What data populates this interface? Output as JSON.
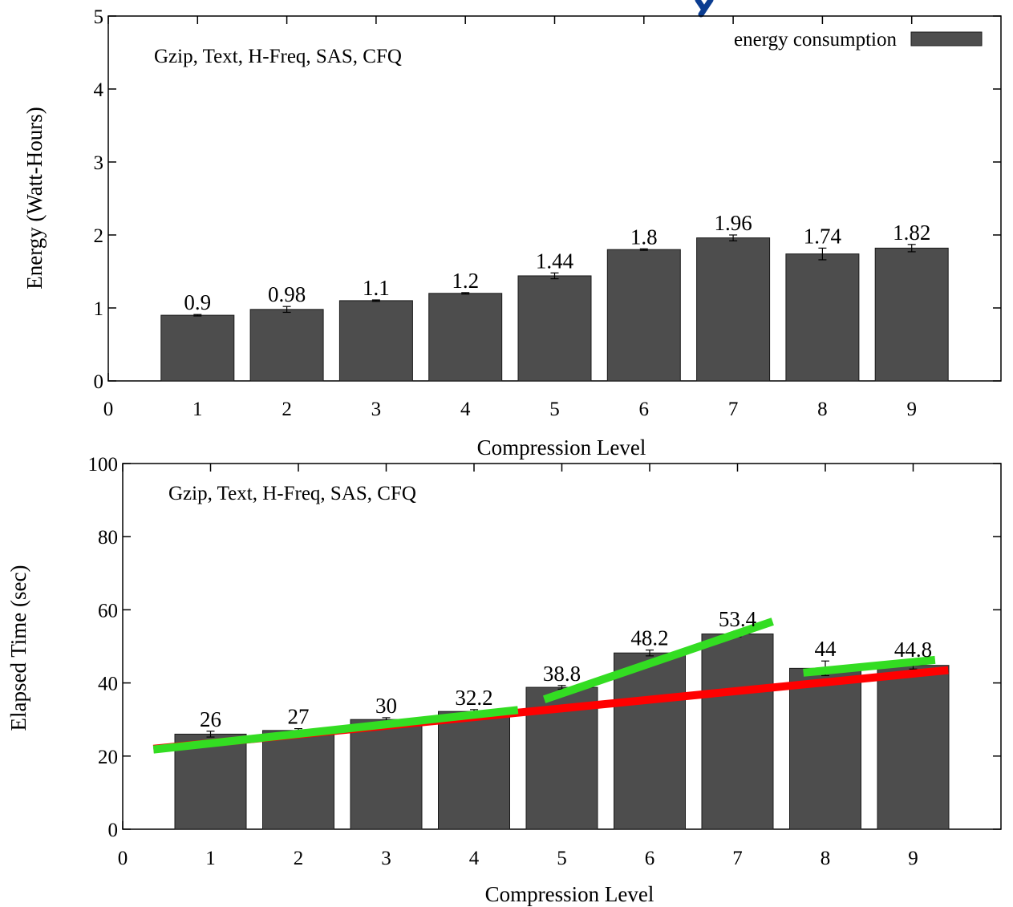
{
  "colors": {
    "bar": "#4d4d4d",
    "bar_edge": "#1a1a1a",
    "trend_red": "#ff0000",
    "trend_green": "#33dd22",
    "title_fragment": "#0b3d91"
  },
  "legend": {
    "label": "energy consumption"
  },
  "chart_data": [
    {
      "type": "bar",
      "annotation": "Gzip, Text, H-Freq, SAS, CFQ",
      "xlabel": "Compression Level",
      "ylabel": "Energy (Watt-Hours)",
      "xlim": [
        0,
        10
      ],
      "ylim": [
        0,
        5
      ],
      "xticks": [
        "0",
        "1",
        "2",
        "3",
        "4",
        "5",
        "6",
        "7",
        "8",
        "9"
      ],
      "yticks": [
        "0",
        "1",
        "2",
        "3",
        "4",
        "5"
      ],
      "categories": [
        "1",
        "2",
        "3",
        "4",
        "5",
        "6",
        "7",
        "8",
        "9"
      ],
      "series": [
        {
          "name": "energy consumption",
          "values": [
            0.9,
            0.98,
            1.1,
            1.2,
            1.44,
            1.8,
            1.96,
            1.74,
            1.82
          ],
          "labels": [
            "0.9",
            "0.98",
            "1.1",
            "1.2",
            "1.44",
            "1.8",
            "1.96",
            "1.74",
            "1.82"
          ],
          "error": [
            0.01,
            0.04,
            0.01,
            0.01,
            0.04,
            0.01,
            0.04,
            0.08,
            0.05
          ]
        }
      ],
      "legend_position": "top-right",
      "grid": false
    },
    {
      "type": "bar",
      "annotation": "Gzip, Text, H-Freq, SAS, CFQ",
      "xlabel": "Compression Level",
      "ylabel": "Elapsed Time (sec)",
      "xlim": [
        0,
        10
      ],
      "ylim": [
        0,
        100
      ],
      "xticks": [
        "0",
        "1",
        "2",
        "3",
        "4",
        "5",
        "6",
        "7",
        "8",
        "9"
      ],
      "yticks": [
        "0",
        "20",
        "40",
        "60",
        "80",
        "100"
      ],
      "categories": [
        "1",
        "2",
        "3",
        "4",
        "5",
        "6",
        "7",
        "8",
        "9"
      ],
      "series": [
        {
          "values": [
            26,
            27,
            30,
            32.2,
            38.8,
            48.2,
            53.4,
            44,
            44.8
          ],
          "labels": [
            "26",
            "27",
            "30",
            "32.2",
            "38.8",
            "48.2",
            "53.4",
            "44",
            "44.8"
          ],
          "error": [
            0.8,
            0.5,
            0.5,
            0.5,
            0.5,
            0.8,
            0.8,
            2.0,
            1.0
          ]
        }
      ],
      "trend_lines": [
        {
          "color": "red",
          "x": [
            0.35,
            9.4
          ],
          "y": [
            22,
            43.5
          ]
        },
        {
          "color": "green",
          "x": [
            0.35,
            4.5
          ],
          "y": [
            21.8,
            32.6
          ]
        },
        {
          "color": "green",
          "x": [
            4.8,
            7.4
          ],
          "y": [
            35.5,
            56.8
          ]
        },
        {
          "color": "green",
          "x": [
            7.75,
            9.25
          ],
          "y": [
            42.8,
            46.3
          ]
        }
      ],
      "grid": false
    }
  ]
}
